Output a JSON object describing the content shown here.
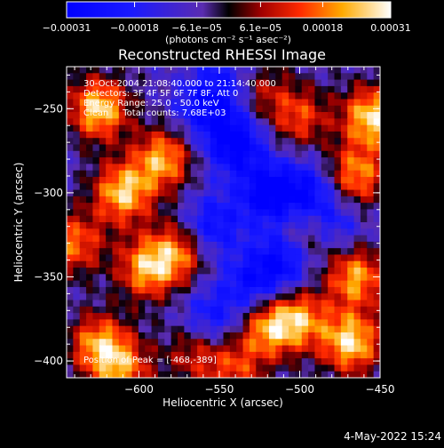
{
  "chart_data": {
    "type": "heatmap",
    "title": "Reconstructed RHESSI Image",
    "xlabel": "Heliocentric X (arcsec)",
    "ylabel": "Heliocentric Y (arcsec)",
    "xlim": [
      -645,
      -450
    ],
    "ylim": [
      -410,
      -225
    ],
    "x_ticks": [
      -600,
      -550,
      -500,
      -450
    ],
    "x_tick_labels": [
      "−600",
      "−550",
      "−500",
      "−450"
    ],
    "y_ticks": [
      -250,
      -300,
      -350,
      -400
    ],
    "y_tick_labels": [
      "−250",
      "−300",
      "−350",
      "−400"
    ],
    "colorbar": {
      "range": [
        -0.00031,
        0.00031
      ],
      "tick_values": [
        -0.00031,
        -0.00018,
        -6.1e-05,
        6.1e-05,
        0.00018,
        0.00031
      ],
      "tick_labels": [
        "−0.00031",
        "−0.00018",
        "−6.1e−05",
        "6.1e−05",
        "0.00018",
        "0.00031"
      ],
      "unit_label": "(photons cm⁻² s⁻¹ asec⁻²)"
    },
    "annotations": [
      "30-Oct-2004 21:08:40.000 to 21:14:40.000",
      "Detectors: 3F 4F 5F 6F 7F 8F, Att 0",
      "Energy Range: 25.0 - 50.0 keV",
      "Clean     Total counts: 7.68E+03"
    ],
    "peak_label": "Position of Peak = [-468,-389]",
    "peak": [
      -468,
      -389
    ],
    "hot_spots": [
      {
        "x": -625,
        "y": -250,
        "v": 1.0
      },
      {
        "x": -610,
        "y": -300,
        "v": 0.95
      },
      {
        "x": -585,
        "y": -280,
        "v": 0.85
      },
      {
        "x": -595,
        "y": -345,
        "v": 0.85
      },
      {
        "x": -575,
        "y": -335,
        "v": 0.7
      },
      {
        "x": -625,
        "y": -390,
        "v": 0.8
      },
      {
        "x": -610,
        "y": -405,
        "v": 0.7
      },
      {
        "x": -565,
        "y": -395,
        "v": 0.5
      },
      {
        "x": -540,
        "y": -405,
        "v": 0.55
      },
      {
        "x": -520,
        "y": -380,
        "v": 0.8
      },
      {
        "x": -500,
        "y": -375,
        "v": 0.75
      },
      {
        "x": -468,
        "y": -389,
        "v": 1.0
      },
      {
        "x": -465,
        "y": -350,
        "v": 0.85
      },
      {
        "x": -455,
        "y": -255,
        "v": 1.0
      },
      {
        "x": -465,
        "y": -290,
        "v": 0.8
      },
      {
        "x": -500,
        "y": -255,
        "v": 0.6
      },
      {
        "x": -525,
        "y": -240,
        "v": 0.45
      },
      {
        "x": -495,
        "y": -325,
        "v": 0.55
      },
      {
        "x": -640,
        "y": -330,
        "v": 0.7
      }
    ],
    "cold_spots": [
      {
        "x": -540,
        "y": -270,
        "v": -0.8
      },
      {
        "x": -520,
        "y": -300,
        "v": -0.75
      },
      {
        "x": -555,
        "y": -320,
        "v": -0.6
      },
      {
        "x": -510,
        "y": -340,
        "v": -0.7
      },
      {
        "x": -530,
        "y": -355,
        "v": -0.55
      },
      {
        "x": -495,
        "y": -300,
        "v": -0.6
      },
      {
        "x": -560,
        "y": -250,
        "v": -0.5
      },
      {
        "x": -480,
        "y": -320,
        "v": -0.5
      },
      {
        "x": -545,
        "y": -235,
        "v": -0.45
      },
      {
        "x": -555,
        "y": -375,
        "v": -0.5
      }
    ]
  },
  "footer": {
    "date": "4-May-2022 15:24"
  }
}
